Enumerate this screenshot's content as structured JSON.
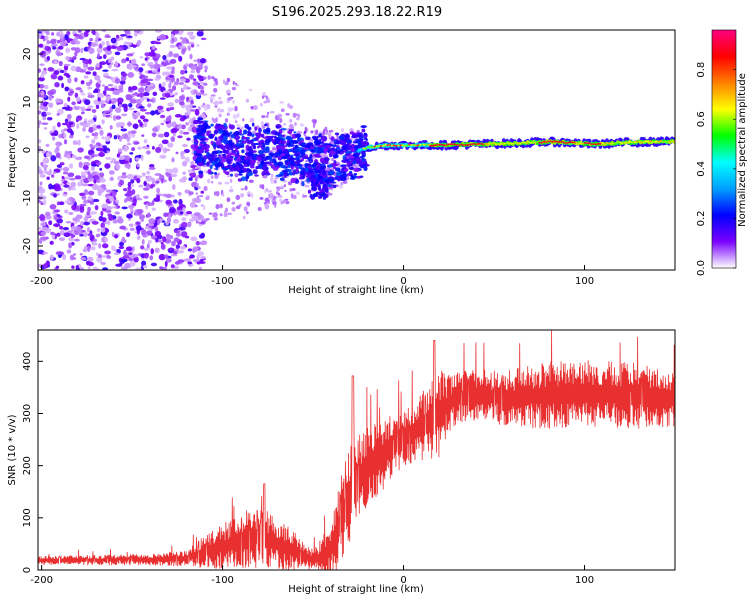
{
  "title": "S196.2025.293.18.22.R19",
  "colors": {
    "snr_line": "#e83030",
    "axis": "#000000",
    "background": "#ffffff"
  },
  "chart_data": [
    {
      "type": "heatmap",
      "name": "spectrogram",
      "xlabel": "Height of straight line (km)",
      "ylabel": "Frequency (Hz)",
      "xlim": [
        -202,
        150
      ],
      "ylim": [
        -25,
        25
      ],
      "xticks": [
        "-200",
        "-100",
        "0",
        "100"
      ],
      "xtick_values": [
        -200,
        -100,
        0,
        100
      ],
      "yticks": [
        "20",
        "10",
        "0",
        "-10",
        "-20"
      ],
      "ytick_values": [
        20,
        10,
        0,
        -10,
        -20
      ],
      "ridge": [
        {
          "x": -115,
          "f": 1.5
        },
        {
          "x": -90,
          "f": -1
        },
        {
          "x": -75,
          "f": 0
        },
        {
          "x": -62,
          "f": -1
        },
        {
          "x": -50,
          "f": -2
        },
        {
          "x": -40,
          "f": -2.5
        },
        {
          "x": -30,
          "f": -1
        },
        {
          "x": -20,
          "f": 0.5
        },
        {
          "x": -10,
          "f": 1
        },
        {
          "x": 0,
          "f": 1
        },
        {
          "x": 20,
          "f": 1
        },
        {
          "x": 40,
          "f": 1.2
        },
        {
          "x": 60,
          "f": 1.4
        },
        {
          "x": 80,
          "f": 1.7
        },
        {
          "x": 95,
          "f": 1.5
        },
        {
          "x": 105,
          "f": 1.2
        },
        {
          "x": 125,
          "f": 1.6
        },
        {
          "x": 150,
          "f": 1.8
        }
      ],
      "colorbar": {
        "label": "Normalized spectral amplitude",
        "ticks": [
          "0.0",
          "0.2",
          "0.4",
          "0.6",
          "0.8"
        ],
        "tick_values": [
          0.0,
          0.2,
          0.4,
          0.6,
          0.8
        ],
        "range": [
          0.0,
          0.96
        ],
        "colormap": [
          "#ffffff",
          "#7a00ff",
          "#0000ff",
          "#00a0ff",
          "#00ffff",
          "#00ff00",
          "#ffff00",
          "#ff8000",
          "#ff0000",
          "#ff0080"
        ]
      }
    },
    {
      "type": "line",
      "name": "snr",
      "xlabel": "Height of straight line (km)",
      "ylabel": "SNR (10 * v/v)",
      "xlim": [
        -202,
        150
      ],
      "ylim": [
        0,
        460
      ],
      "xticks": [
        "-200",
        "-100",
        "0",
        "100"
      ],
      "xtick_values": [
        -200,
        -100,
        0,
        100
      ],
      "yticks": [
        "0",
        "100",
        "200",
        "300",
        "400"
      ],
      "ytick_values": [
        0,
        100,
        200,
        300,
        400
      ],
      "envelope": {
        "x": [
          -202,
          -140,
          -120,
          -110,
          -100,
          -90,
          -80,
          -70,
          -60,
          -50,
          -45,
          -40,
          -35,
          -30,
          -25,
          -20,
          -10,
          0,
          10,
          20,
          25,
          30,
          40,
          60,
          80,
          100,
          120,
          150
        ],
        "mean": [
          18,
          20,
          22,
          35,
          45,
          55,
          65,
          50,
          35,
          20,
          25,
          40,
          90,
          140,
          170,
          195,
          225,
          255,
          275,
          300,
          320,
          330,
          335,
          330,
          335,
          340,
          335,
          330
        ],
        "amplitude": [
          8,
          10,
          14,
          30,
          40,
          50,
          55,
          45,
          35,
          20,
          35,
          50,
          80,
          90,
          80,
          70,
          60,
          50,
          60,
          80,
          50,
          45,
          45,
          50,
          60,
          60,
          60,
          50
        ]
      }
    }
  ]
}
